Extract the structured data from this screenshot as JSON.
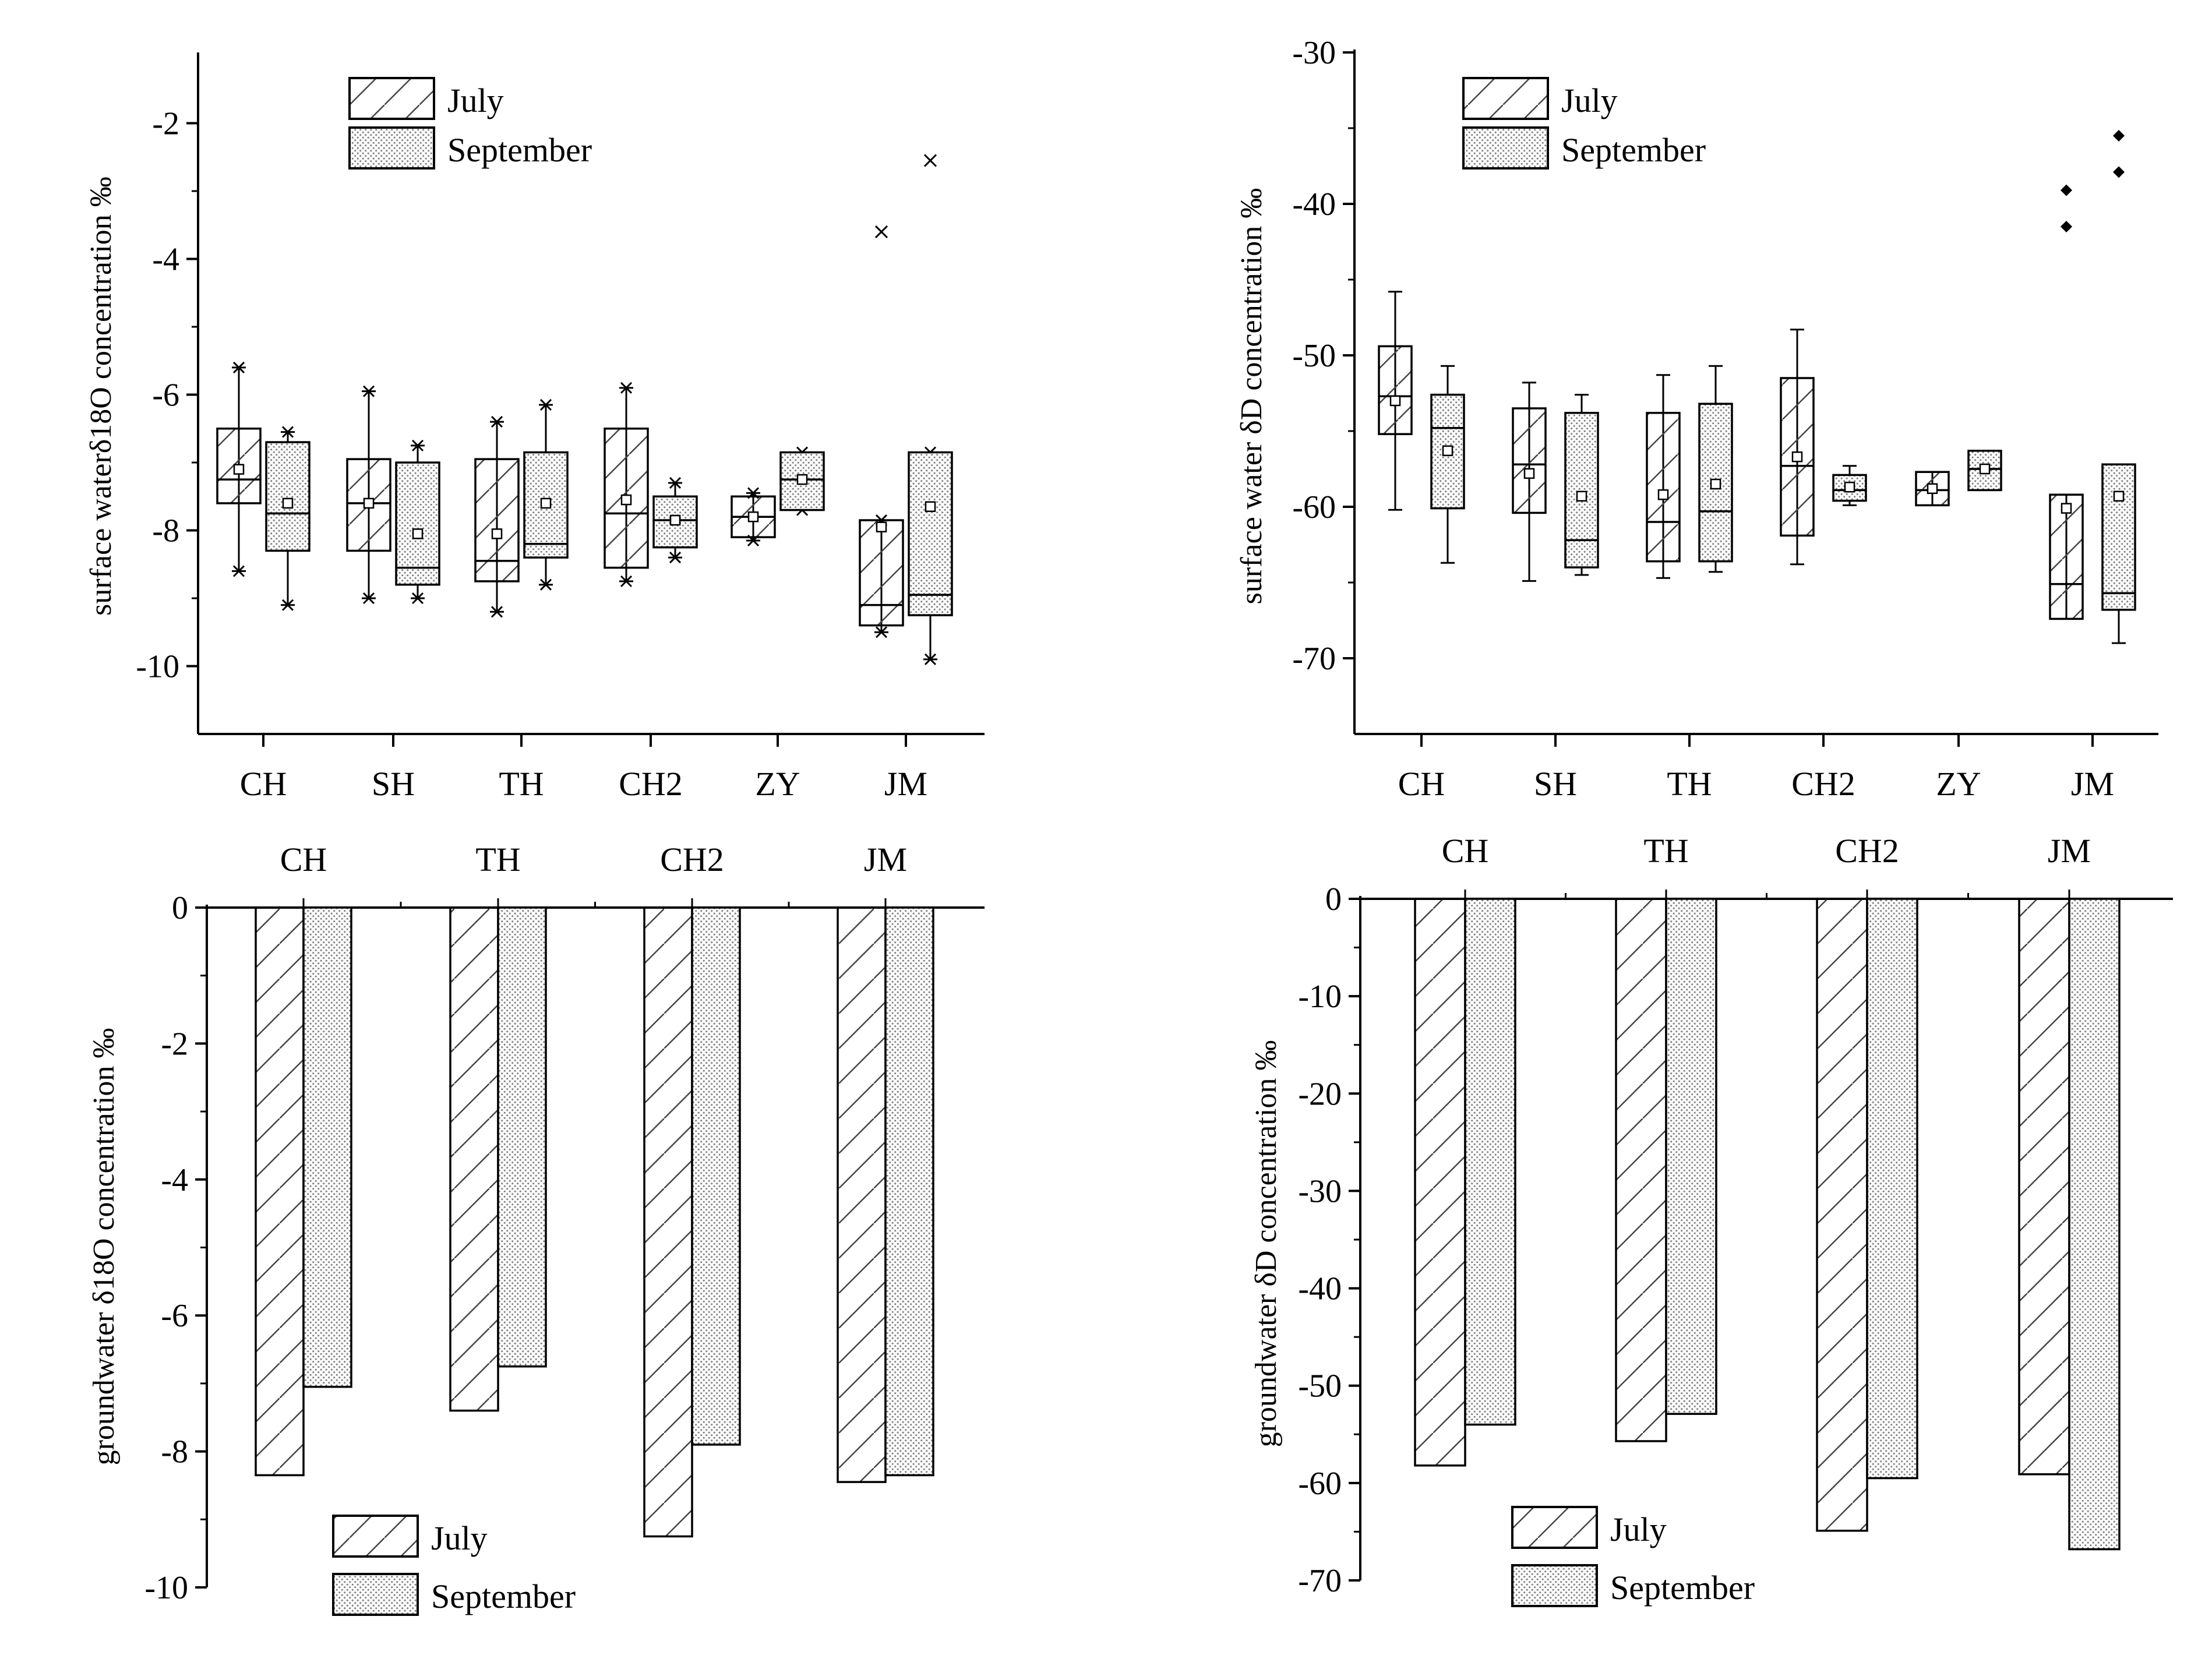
{
  "chart_data": [
    {
      "id": "a",
      "type": "box",
      "ylabel": "surface waterδ18O concentration ‰",
      "ylim": [
        -11.0,
        -1.0
      ],
      "yticks": [
        -10,
        -8,
        -6,
        -4,
        -2
      ],
      "categories": [
        "CH",
        "SH",
        "TH",
        "CH2",
        "ZY",
        "JM"
      ],
      "legend": [
        "July",
        "September"
      ],
      "series": [
        {
          "name": "July",
          "boxes": [
            {
              "whislo": -8.6,
              "q1": -7.6,
              "med": -7.25,
              "q3": -6.5,
              "whishi": -5.6,
              "mean": -7.1,
              "fliers": []
            },
            {
              "whislo": -9.0,
              "q1": -8.3,
              "med": -7.6,
              "q3": -6.95,
              "whishi": -5.95,
              "mean": -7.6,
              "fliers": []
            },
            {
              "whislo": -9.2,
              "q1": -8.75,
              "med": -8.45,
              "q3": -6.95,
              "whishi": -6.4,
              "mean": -8.05,
              "fliers": []
            },
            {
              "whislo": -8.75,
              "q1": -8.55,
              "med": -7.75,
              "q3": -6.5,
              "whishi": -5.9,
              "mean": -7.55,
              "fliers": []
            },
            {
              "whislo": -8.15,
              "q1": -8.1,
              "med": -7.8,
              "q3": -7.5,
              "whishi": -7.45,
              "mean": -7.8,
              "fliers": []
            },
            {
              "whislo": -9.5,
              "q1": -9.4,
              "med": -9.1,
              "q3": -7.85,
              "whishi": -7.85,
              "mean": -7.95,
              "fliers": [
                -3.6
              ]
            }
          ]
        },
        {
          "name": "September",
          "boxes": [
            {
              "whislo": -9.1,
              "q1": -8.3,
              "med": -7.75,
              "q3": -6.7,
              "whishi": -6.55,
              "mean": -7.6,
              "fliers": []
            },
            {
              "whislo": -9.0,
              "q1": -8.8,
              "med": -8.55,
              "q3": -7.0,
              "whishi": -6.75,
              "mean": -8.05,
              "fliers": []
            },
            {
              "whislo": -8.8,
              "q1": -8.4,
              "med": -8.2,
              "q3": -6.85,
              "whishi": -6.15,
              "mean": -7.6,
              "fliers": []
            },
            {
              "whislo": -8.4,
              "q1": -8.25,
              "med": -7.85,
              "q3": -7.5,
              "whishi": -7.3,
              "mean": -7.85,
              "fliers": []
            },
            {
              "whislo": -7.7,
              "q1": -7.7,
              "med": -7.25,
              "q3": -6.85,
              "whishi": -6.85,
              "mean": -7.25,
              "fliers": []
            },
            {
              "whislo": -9.9,
              "q1": -9.25,
              "med": -8.95,
              "q3": -6.85,
              "whishi": -6.85,
              "mean": -7.65,
              "fliers": [
                -2.55
              ]
            }
          ]
        }
      ]
    },
    {
      "id": "b",
      "type": "box",
      "ylabel": "surface water δD concentration ‰",
      "ylim": [
        -75,
        -30
      ],
      "yticks": [
        -70,
        -60,
        -50,
        -40,
        -30
      ],
      "categories": [
        "CH",
        "SH",
        "TH",
        "CH2",
        "ZY",
        "JM"
      ],
      "legend": [
        "July",
        "September"
      ],
      "series": [
        {
          "name": "July",
          "boxes": [
            {
              "whislo": -60.2,
              "q1": -55.2,
              "med": -52.7,
              "q3": -49.4,
              "whishi": -45.8,
              "mean": -53.0,
              "fliers": []
            },
            {
              "whislo": -64.9,
              "q1": -60.4,
              "med": -57.2,
              "q3": -53.5,
              "whishi": -51.8,
              "mean": -57.8,
              "fliers": []
            },
            {
              "whislo": -64.7,
              "q1": -63.6,
              "med": -61.0,
              "q3": -53.8,
              "whishi": -51.3,
              "mean": -59.2,
              "fliers": []
            },
            {
              "whislo": -63.8,
              "q1": -61.9,
              "med": -57.3,
              "q3": -51.5,
              "whishi": -48.3,
              "mean": -56.7,
              "fliers": []
            },
            {
              "whislo": -59.9,
              "q1": -59.9,
              "med": -58.9,
              "q3": -57.7,
              "whishi": -57.7,
              "mean": -58.8,
              "fliers": []
            },
            {
              "whislo": -67.4,
              "q1": -67.4,
              "med": -65.1,
              "q3": -59.2,
              "whishi": -59.2,
              "mean": -60.1,
              "fliers": [
                -39.1,
                -41.5
              ]
            }
          ]
        },
        {
          "name": "September",
          "boxes": [
            {
              "whislo": -63.7,
              "q1": -60.1,
              "med": -54.8,
              "q3": -52.6,
              "whishi": -50.7,
              "mean": -56.3,
              "fliers": []
            },
            {
              "whislo": -64.5,
              "q1": -64.0,
              "med": -62.2,
              "q3": -53.8,
              "whishi": -52.6,
              "mean": -59.3,
              "fliers": []
            },
            {
              "whislo": -64.3,
              "q1": -63.6,
              "med": -60.3,
              "q3": -53.2,
              "whishi": -50.7,
              "mean": -58.5,
              "fliers": []
            },
            {
              "whislo": -59.9,
              "q1": -59.6,
              "med": -58.9,
              "q3": -57.9,
              "whishi": -57.3,
              "mean": -58.7,
              "fliers": []
            },
            {
              "whislo": -58.9,
              "q1": -58.9,
              "med": -57.5,
              "q3": -56.3,
              "whishi": -56.3,
              "mean": -57.5,
              "fliers": []
            },
            {
              "whislo": -69.0,
              "q1": -66.8,
              "med": -65.7,
              "q3": -57.2,
              "whishi": -57.2,
              "mean": -59.3,
              "fliers": [
                -35.5,
                -37.9
              ]
            }
          ]
        }
      ]
    },
    {
      "id": "c",
      "type": "bar",
      "ylabel": "groundwater δ18O concentration ‰",
      "ylim": [
        -10,
        0
      ],
      "yticks": [
        0,
        -2,
        -4,
        -6,
        -8,
        -10
      ],
      "categories": [
        "CH",
        "TH",
        "CH2",
        "JM"
      ],
      "legend": [
        "July",
        "September"
      ],
      "series": [
        {
          "name": "July",
          "values": [
            -8.35,
            -7.4,
            -9.25,
            -8.45
          ]
        },
        {
          "name": "September",
          "values": [
            -7.05,
            -6.75,
            -7.9,
            -8.35
          ]
        }
      ]
    },
    {
      "id": "d",
      "type": "bar",
      "ylabel": "groundwater δD concentration ‰",
      "ylim": [
        -70,
        0
      ],
      "yticks": [
        0,
        -10,
        -20,
        -30,
        -40,
        -50,
        -60,
        -70
      ],
      "categories": [
        "CH",
        "TH",
        "CH2",
        "JM"
      ],
      "legend": [
        "July",
        "September"
      ],
      "series": [
        {
          "name": "July",
          "values": [
            -58.2,
            -55.7,
            -64.9,
            -59.1
          ]
        },
        {
          "name": "September",
          "values": [
            -54.0,
            -52.9,
            -59.5,
            -66.8
          ]
        }
      ]
    }
  ]
}
